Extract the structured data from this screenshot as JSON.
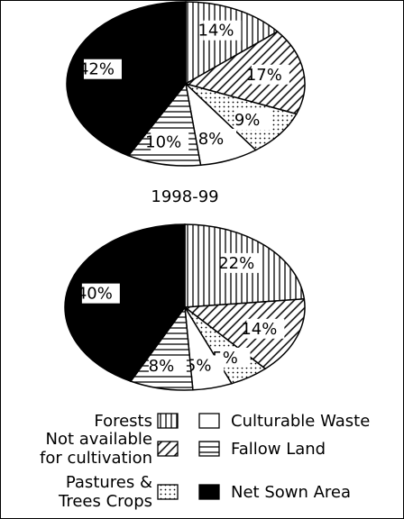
{
  "chart_data": {
    "type": "pie",
    "categories": [
      "Forests",
      "Not available\nfor cultivation",
      "Pastures &\nTrees Crops",
      "Culturable Waste",
      "Fallow Land",
      "Net Sown Area"
    ],
    "patterns": [
      "vertical",
      "diagonal",
      "dots",
      "blank",
      "horizontal",
      "solid"
    ],
    "charts": [
      {
        "values": [
          14,
          17,
          9,
          8,
          10,
          42
        ]
      },
      {
        "title": "1998-99",
        "values": [
          22,
          14,
          5,
          5,
          8,
          40
        ]
      }
    ]
  }
}
